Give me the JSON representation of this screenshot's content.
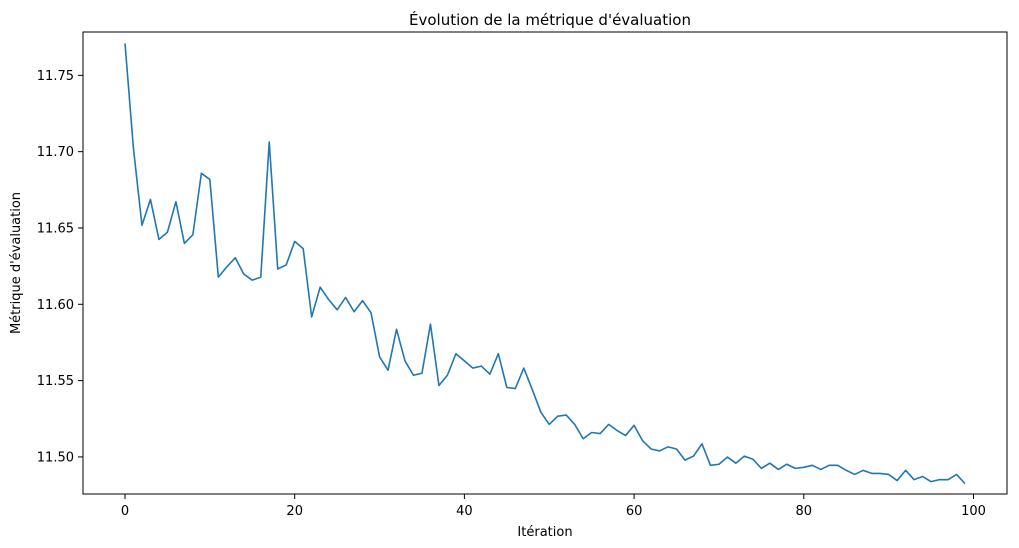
{
  "chart_data": {
    "type": "line",
    "title": "Évolution de la métrique d'évaluation",
    "xlabel": "Itération",
    "ylabel": "Métrique d'évaluation",
    "xlim": [
      -4.95,
      103.95
    ],
    "ylim": [
      11.4757,
      11.7784
    ],
    "xticks": [
      0,
      20,
      40,
      60,
      80,
      100
    ],
    "yticks": [
      11.5,
      11.55,
      11.6,
      11.65,
      11.7,
      11.75
    ],
    "ytick_labels": [
      "11.50",
      "11.55",
      "11.60",
      "11.65",
      "11.70",
      "11.75"
    ],
    "xtick_labels": [
      "0",
      "20",
      "40",
      "60",
      "80",
      "100"
    ],
    "grid": false,
    "line_color": "#1f77b4",
    "series": [
      {
        "values": [
          11.7709,
          11.7019,
          11.6518,
          11.6687,
          11.6425,
          11.6472,
          11.6672,
          11.6399,
          11.6456,
          11.6858,
          11.6818,
          11.6178,
          11.6245,
          11.6305,
          11.6198,
          11.6158,
          11.6178,
          11.7063,
          11.6231,
          11.6258,
          11.6412,
          11.6365,
          11.5917,
          11.6112,
          11.6031,
          11.5964,
          11.6045,
          11.5951,
          11.6024,
          11.5944,
          11.5656,
          11.5568,
          11.5836,
          11.5629,
          11.5535,
          11.5548,
          11.587,
          11.5468,
          11.5535,
          11.5676,
          11.5629,
          11.5582,
          11.5595,
          11.5542,
          11.5676,
          11.5455,
          11.5448,
          11.5582,
          11.5441,
          11.5294,
          11.5213,
          11.5267,
          11.5274,
          11.5213,
          11.5119,
          11.516,
          11.5153,
          11.5213,
          11.5173,
          11.514,
          11.5207,
          11.5106,
          11.5052,
          11.5039,
          11.5066,
          11.5052,
          11.4979,
          11.5005,
          11.5086,
          11.4945,
          11.4952,
          11.4999,
          11.4959,
          11.5005,
          11.4985,
          11.4925,
          11.4959,
          11.4918,
          11.4952,
          11.4925,
          11.4932,
          11.4945,
          11.4918,
          11.4945,
          11.4945,
          11.4912,
          11.4885,
          11.4912,
          11.4892,
          11.4892,
          11.4885,
          11.4845,
          11.4912,
          11.4851,
          11.4872,
          11.4838,
          11.4851,
          11.4851,
          11.4885,
          11.4825
        ]
      }
    ]
  }
}
